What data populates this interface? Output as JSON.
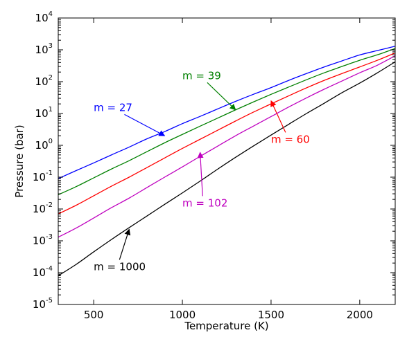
{
  "chart_data": {
    "type": "line",
    "title": "",
    "xlabel": "Temperature (K)",
    "ylabel": "Pressure (bar)",
    "xlim": [
      300,
      2200
    ],
    "ylim": [
      1e-05,
      10000.0
    ],
    "yscale": "log",
    "grid": false,
    "legend": "none",
    "x_ticks": [
      500,
      1000,
      1500,
      2000
    ],
    "x_tick_labels": [
      "500",
      "1000",
      "1500",
      "2000"
    ],
    "y_ticks": [
      {
        "base": "10",
        "exp": "-5",
        "value": 1e-05
      },
      {
        "base": "10",
        "exp": "-4",
        "value": 0.0001
      },
      {
        "base": "10",
        "exp": "-3",
        "value": 0.001
      },
      {
        "base": "10",
        "exp": "-2",
        "value": 0.01
      },
      {
        "base": "10",
        "exp": "-1",
        "value": 0.1
      },
      {
        "base": "10",
        "exp": "0",
        "value": 1
      },
      {
        "base": "10",
        "exp": "1",
        "value": 10
      },
      {
        "base": "10",
        "exp": "2",
        "value": 100
      },
      {
        "base": "10",
        "exp": "3",
        "value": 1000
      },
      {
        "base": "10",
        "exp": "4",
        "value": 10000
      }
    ],
    "x": [
      300,
      400,
      500,
      600,
      700,
      800,
      900,
      1000,
      1100,
      1200,
      1300,
      1400,
      1500,
      1600,
      1700,
      1800,
      1900,
      2000,
      2100,
      2200
    ],
    "series": [
      {
        "color": "#0000ff",
        "values": [
          0.09,
          0.16,
          0.28,
          0.5,
          0.88,
          1.6,
          2.7,
          4.8,
          8.1,
          14,
          24,
          40,
          65,
          110,
          180,
          290,
          450,
          690,
          950,
          1300
        ]
      },
      {
        "color": "#008000",
        "values": [
          0.028,
          0.05,
          0.095,
          0.18,
          0.33,
          0.63,
          1.2,
          2.2,
          4.0,
          7.2,
          13,
          23,
          40,
          68,
          115,
          190,
          300,
          470,
          700,
          1100
        ]
      },
      {
        "color": "#ff0000",
        "values": [
          0.007,
          0.013,
          0.026,
          0.052,
          0.1,
          0.2,
          0.4,
          0.8,
          1.55,
          3.0,
          5.8,
          11,
          20,
          36,
          64,
          110,
          180,
          290,
          470,
          800
        ]
      },
      {
        "color": "#bf00bf",
        "values": [
          0.0013,
          0.0025,
          0.0052,
          0.011,
          0.022,
          0.047,
          0.1,
          0.21,
          0.45,
          0.95,
          2.0,
          4.0,
          8.0,
          16,
          31,
          58,
          105,
          190,
          330,
          650
        ]
      },
      {
        "color": "#000000",
        "values": [
          8e-05,
          0.00018,
          0.00045,
          0.0011,
          0.0026,
          0.006,
          0.014,
          0.032,
          0.075,
          0.18,
          0.42,
          0.95,
          2.1,
          4.6,
          10,
          21,
          45,
          90,
          190,
          420
        ]
      }
    ],
    "annotations": [
      {
        "text": "m = 27",
        "color": "#0000ff",
        "text_x": 500,
        "text_y": 12,
        "arrow_x": 900,
        "arrow_y": 2.0
      },
      {
        "text": "m = 39",
        "color": "#008000",
        "text_x": 1000,
        "text_y": 120,
        "arrow_x": 1300,
        "arrow_y": 13
      },
      {
        "text": "m = 60",
        "color": "#ff0000",
        "text_x": 1500,
        "text_y": 1.2,
        "arrow_x": 1500,
        "arrow_y": 25
      },
      {
        "text": "m = 102",
        "color": "#bf00bf",
        "text_x": 1000,
        "text_y": 0.012,
        "arrow_x": 1100,
        "arrow_y": 0.6
      },
      {
        "text": "m = 1000",
        "color": "#000000",
        "text_x": 500,
        "text_y": 0.00012,
        "arrow_x": 700,
        "arrow_y": 0.0023
      }
    ]
  }
}
